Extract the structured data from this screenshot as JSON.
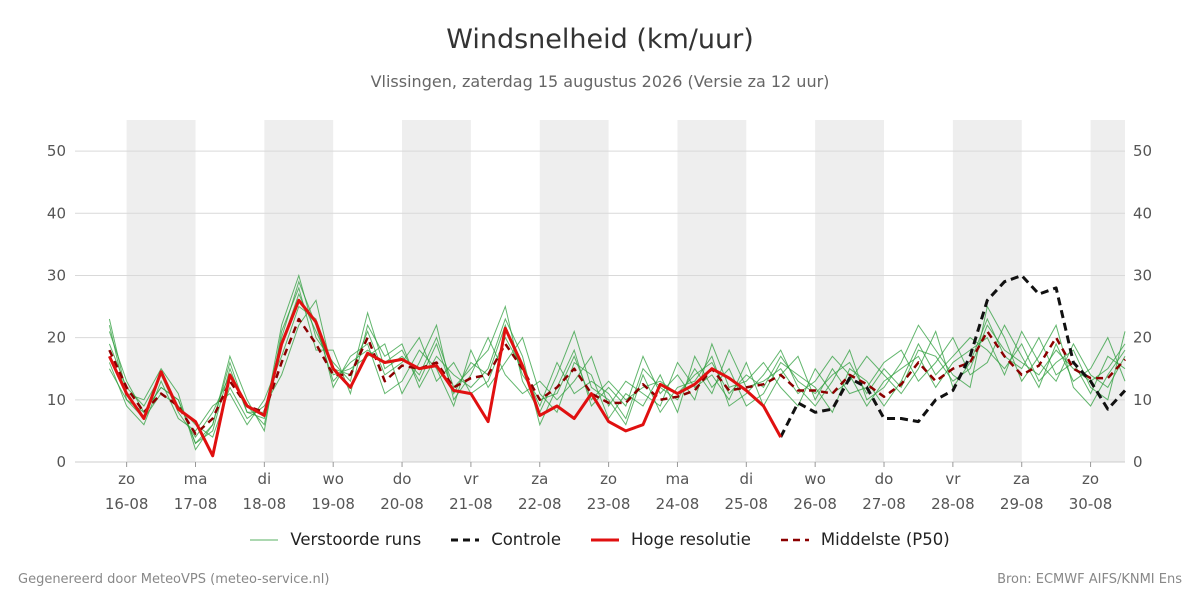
{
  "header": {
    "title": "Windsnelheid (km/uur)",
    "subtitle": "Vlissingen, zaterdag 15 augustus 2026 (Versie za 12 uur)"
  },
  "footer": {
    "left": "Gegenereerd door MeteoVPS (meteo-service.nl)",
    "right": "Bron: ECMWF AIFS/KNMI Ens"
  },
  "legend": [
    {
      "label": "Verstoorde runs",
      "color": "#2e9e3c",
      "style": "thin-solid"
    },
    {
      "label": "Controle",
      "color": "#111111",
      "style": "dashed"
    },
    {
      "label": "Hoge resolutie",
      "color": "#e01010",
      "style": "solid"
    },
    {
      "label": "Middelste (P50)",
      "color": "#8b0000",
      "style": "dashed"
    }
  ],
  "chart_data": {
    "type": "line",
    "x_unit": "days since 16-08 00:00",
    "xlim": [
      -0.75,
      14.5
    ],
    "ylim": [
      0,
      55
    ],
    "y_ticks": [
      0,
      10,
      20,
      30,
      40,
      50
    ],
    "grid": true,
    "legend_position": "bottom",
    "day_labels": [
      {
        "day": "zo",
        "date": "16-08"
      },
      {
        "day": "ma",
        "date": "17-08"
      },
      {
        "day": "di",
        "date": "18-08"
      },
      {
        "day": "wo",
        "date": "19-08"
      },
      {
        "day": "do",
        "date": "20-08"
      },
      {
        "day": "vr",
        "date": "21-08"
      },
      {
        "day": "za",
        "date": "22-08"
      },
      {
        "day": "zo",
        "date": "23-08"
      },
      {
        "day": "ma",
        "date": "24-08"
      },
      {
        "day": "di",
        "date": "25-08"
      },
      {
        "day": "wo",
        "date": "26-08"
      },
      {
        "day": "do",
        "date": "27-08"
      },
      {
        "day": "vr",
        "date": "28-08"
      },
      {
        "day": "za",
        "date": "29-08"
      },
      {
        "day": "zo",
        "date": "30-08"
      }
    ],
    "shaded_days": [
      0,
      2,
      4,
      6,
      8,
      10,
      12,
      14
    ],
    "series": [
      {
        "name": "Hoge resolutie",
        "color": "#e01010",
        "x": [
          -0.25,
          0,
          0.25,
          0.5,
          0.75,
          1.0,
          1.25,
          1.5,
          1.75,
          2.0,
          2.25,
          2.5,
          2.75,
          3.0,
          3.25,
          3.5,
          3.75,
          4.0,
          4.25,
          4.5,
          4.75,
          5.0,
          5.25,
          5.5,
          5.75,
          6.0,
          6.25,
          6.5,
          6.75,
          7.0,
          7.25,
          7.5,
          7.75,
          8.0,
          8.25,
          8.5,
          8.75,
          9.0,
          9.25,
          9.5
        ],
        "values": [
          17,
          11,
          7,
          14.5,
          8.5,
          6.5,
          1,
          14,
          9,
          7.5,
          19,
          26,
          22.5,
          15,
          12,
          17.5,
          16,
          16.5,
          15,
          15.5,
          11.5,
          11,
          6.5,
          21.5,
          15.5,
          7.5,
          9,
          7,
          11,
          6.5,
          5,
          6,
          12.5,
          11,
          12.5,
          15,
          13.5,
          11.5,
          9,
          4
        ]
      },
      {
        "name": "Controle",
        "color": "#111111",
        "x": [
          9.5,
          9.75,
          10.0,
          10.25,
          10.5,
          10.75,
          11.0,
          11.25,
          11.5,
          11.75,
          12.0,
          12.25,
          12.5,
          12.75,
          13.0,
          13.25,
          13.5,
          13.75,
          14.0,
          14.25,
          14.5
        ],
        "values": [
          4,
          9.5,
          8,
          8.5,
          13.5,
          12,
          7,
          7,
          6.5,
          10,
          11.5,
          17,
          26,
          29,
          30,
          27,
          28,
          16,
          13,
          8.5,
          11.5
        ]
      },
      {
        "name": "Middelste (P50)",
        "color": "#8b0000",
        "x": [
          -0.25,
          0,
          0.25,
          0.5,
          0.75,
          1.0,
          1.25,
          1.5,
          1.75,
          2.0,
          2.25,
          2.5,
          2.75,
          3.0,
          3.25,
          3.5,
          3.75,
          4.0,
          4.25,
          4.5,
          4.75,
          5.0,
          5.25,
          5.5,
          5.75,
          6.0,
          6.25,
          6.5,
          6.75,
          7.0,
          7.25,
          7.5,
          7.75,
          8.0,
          8.25,
          8.5,
          8.75,
          9.0,
          9.25,
          9.5,
          9.75,
          10.0,
          10.25,
          10.5,
          10.75,
          11.0,
          11.25,
          11.5,
          11.75,
          12.0,
          12.25,
          12.5,
          12.75,
          13.0,
          13.25,
          13.5,
          13.75,
          14.0,
          14.25,
          14.5
        ],
        "values": [
          18,
          12,
          8,
          11,
          9,
          4.5,
          7,
          13,
          9,
          8,
          16,
          23,
          19,
          14,
          14,
          20,
          13,
          15.5,
          15,
          16,
          12,
          13.5,
          14,
          19,
          15,
          10,
          12,
          15,
          11,
          9.5,
          9.5,
          12.5,
          10,
          10.5,
          11.5,
          15,
          11.5,
          12,
          12.5,
          14,
          11.5,
          11.5,
          11,
          14,
          12.5,
          10.5,
          12.5,
          16,
          13,
          15,
          16,
          21,
          17,
          14,
          15.5,
          20,
          15,
          13.5,
          13.5,
          16.5
        ]
      }
    ],
    "ensemble": {
      "name": "Verstoorde runs",
      "color": "#2e9e3c",
      "x_start": -0.25,
      "x_step": 0.25,
      "members": [
        [
          21,
          13,
          8,
          12,
          10,
          3,
          5,
          15,
          8,
          7,
          22,
          30,
          20,
          16,
          13,
          24,
          15,
          17,
          14,
          20,
          12,
          15,
          18,
          25,
          13,
          8,
          14,
          21,
          12,
          10,
          6,
          14,
          8,
          12,
          13,
          17,
          9,
          11,
          14,
          18,
          12,
          9,
          13,
          18,
          10,
          12,
          16,
          22,
          18,
          14,
          12,
          25,
          20,
          13,
          17,
          22,
          12,
          9,
          14,
          18
        ],
        [
          16,
          9,
          6,
          13,
          7,
          5,
          9,
          11,
          6,
          10,
          17,
          25,
          23,
          12,
          17,
          19,
          11,
          13,
          18,
          15,
          9,
          18,
          12,
          16,
          20,
          11,
          8,
          16,
          14,
          7,
          11,
          9,
          14,
          8,
          17,
          12,
          15,
          9,
          11,
          16,
          14,
          12,
          8,
          15,
          13,
          9,
          13,
          19,
          14,
          17,
          20,
          18,
          15,
          19,
          13,
          16,
          18,
          12,
          10,
          21
        ],
        [
          23,
          11,
          10,
          15,
          11,
          2,
          6,
          17,
          10,
          5,
          21,
          28,
          18,
          18,
          11,
          22,
          17,
          19,
          12,
          17,
          14,
          12,
          15,
          23,
          17,
          6,
          12,
          18,
          9,
          12,
          9,
          17,
          11,
          14,
          10,
          19,
          12,
          13,
          16,
          12,
          9,
          15,
          11,
          13,
          17,
          14,
          11,
          15,
          21,
          12,
          16,
          23,
          17,
          15,
          20,
          14,
          16,
          11,
          17,
          15
        ],
        [
          15,
          10,
          7,
          11,
          9,
          6,
          4,
          12,
          7,
          9,
          14,
          22,
          26,
          14,
          15,
          17,
          19,
          11,
          16,
          22,
          10,
          14,
          20,
          14,
          11,
          13,
          10,
          13,
          17,
          9,
          13,
          11,
          9,
          16,
          12,
          14,
          10,
          16,
          9,
          14,
          17,
          10,
          15,
          11,
          12,
          16,
          18,
          13,
          16,
          20,
          14,
          16,
          22,
          17,
          12,
          19,
          13,
          15,
          20,
          13
        ],
        [
          19,
          12,
          9,
          14,
          8,
          4,
          8,
          14,
          9,
          6,
          19,
          27,
          21,
          15,
          14,
          21,
          14,
          16,
          20,
          13,
          16,
          11,
          13,
          20,
          15,
          9,
          16,
          11,
          13,
          11,
          7,
          15,
          12,
          10,
          15,
          11,
          18,
          12,
          13,
          15,
          11,
          13,
          17,
          14,
          9,
          13,
          15,
          17,
          12,
          16,
          18,
          20,
          14,
          21,
          16,
          13,
          19,
          14,
          12,
          17
        ],
        [
          22,
          10,
          8,
          12,
          10,
          3,
          6,
          16,
          8,
          8,
          20,
          29,
          22,
          13,
          16,
          18,
          16,
          18,
          13,
          19,
          11,
          16,
          14,
          22,
          14,
          10,
          11,
          17,
          10,
          13,
          10,
          12,
          13,
          11,
          14,
          16,
          11,
          14,
          12,
          17,
          13,
          11,
          14,
          16,
          11,
          15,
          12,
          18,
          17,
          13,
          15,
          22,
          18,
          16,
          14,
          18,
          15,
          13,
          15,
          19
        ]
      ]
    }
  }
}
